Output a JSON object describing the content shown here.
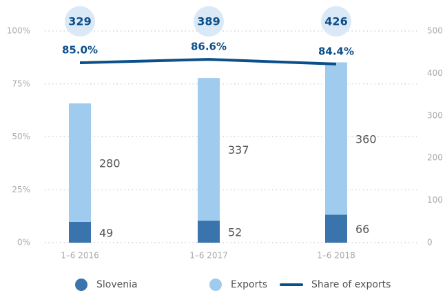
{
  "chart_data": {
    "type": "bar",
    "categories": [
      "1–6 2016",
      "1–6 2017",
      "1–6 2018"
    ],
    "series": [
      {
        "name": "Slovenia",
        "color": "#3a74ad",
        "axis": "y2",
        "values": [
          49,
          52,
          66
        ]
      },
      {
        "name": "Exports",
        "color": "#9fcbef",
        "axis": "y2",
        "values": [
          280,
          337,
          360
        ]
      },
      {
        "name": "Share of exports",
        "type": "line",
        "color": "#0b4f8a",
        "axis": "y",
        "values": [
          85.0,
          86.6,
          84.4
        ],
        "value_labels": [
          "85.0%",
          "86.6%",
          "84.4%"
        ]
      }
    ],
    "totals": [
      329,
      389,
      426
    ],
    "ylim": [
      0,
      100
    ],
    "yticks": [
      {
        "value": 0,
        "label": "0%"
      },
      {
        "value": 25,
        "label": "25%"
      },
      {
        "value": 50,
        "label": "50%"
      },
      {
        "value": 75,
        "label": "75%"
      },
      {
        "value": 100,
        "label": "100%"
      }
    ],
    "y2lim": [
      0,
      500
    ],
    "y2ticks": [
      0,
      100,
      200,
      300,
      400,
      500
    ],
    "grid": true,
    "legend": "bottom"
  }
}
